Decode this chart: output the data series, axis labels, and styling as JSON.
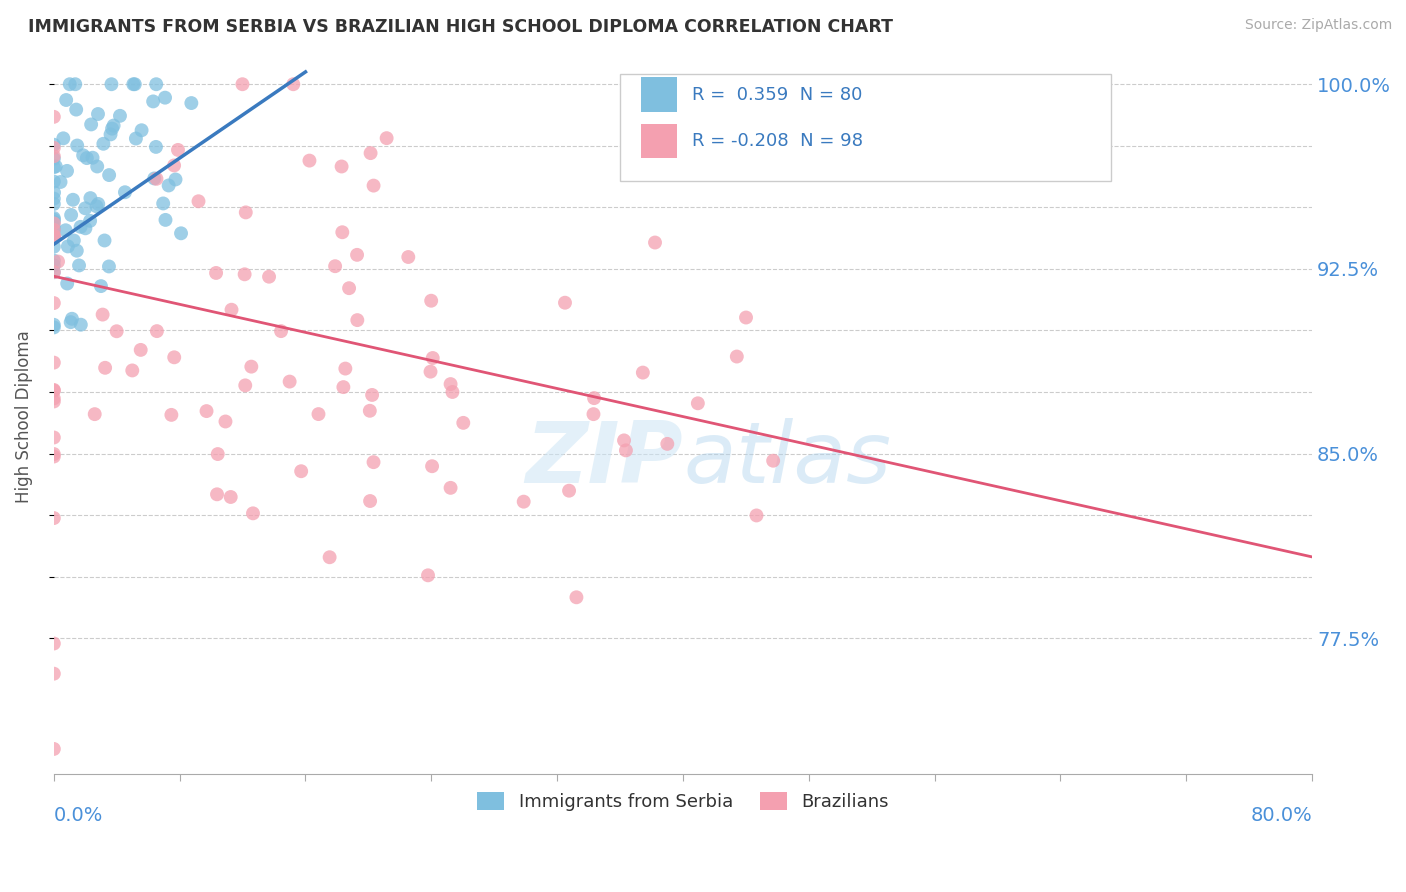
{
  "title": "IMMIGRANTS FROM SERBIA VS BRAZILIAN HIGH SCHOOL DIPLOMA CORRELATION CHART",
  "source": "Source: ZipAtlas.com",
  "ylabel": "High School Diploma",
  "xmin": 0.0,
  "xmax": 0.08,
  "ymin": 0.72,
  "ymax": 1.01,
  "ytick_positions": [
    0.775,
    0.8,
    0.825,
    0.85,
    0.875,
    0.9,
    0.925,
    0.95,
    0.975,
    1.0
  ],
  "ytick_labels_right": [
    "77.5%",
    "",
    "",
    "85.0%",
    "",
    "",
    "92.5%",
    "",
    "",
    "100.0%"
  ],
  "blue_color": "#7fbfdf",
  "pink_color": "#f4a0b0",
  "blue_line_color": "#3a7abf",
  "pink_line_color": "#e05575",
  "serbia_r": 0.359,
  "serbia_n": 80,
  "brazil_r": -0.208,
  "brazil_n": 98,
  "watermark": "ZIPatlas",
  "legend_r1_text": "R =  0.359  N = 80",
  "legend_r2_text": "R = -0.208  N = 98",
  "serbia_trend_x": [
    0.0,
    0.016
  ],
  "serbia_trend_y": [
    0.935,
    1.005
  ],
  "brazil_trend_x": [
    0.0,
    0.08
  ],
  "brazil_trend_y": [
    0.922,
    0.808
  ]
}
